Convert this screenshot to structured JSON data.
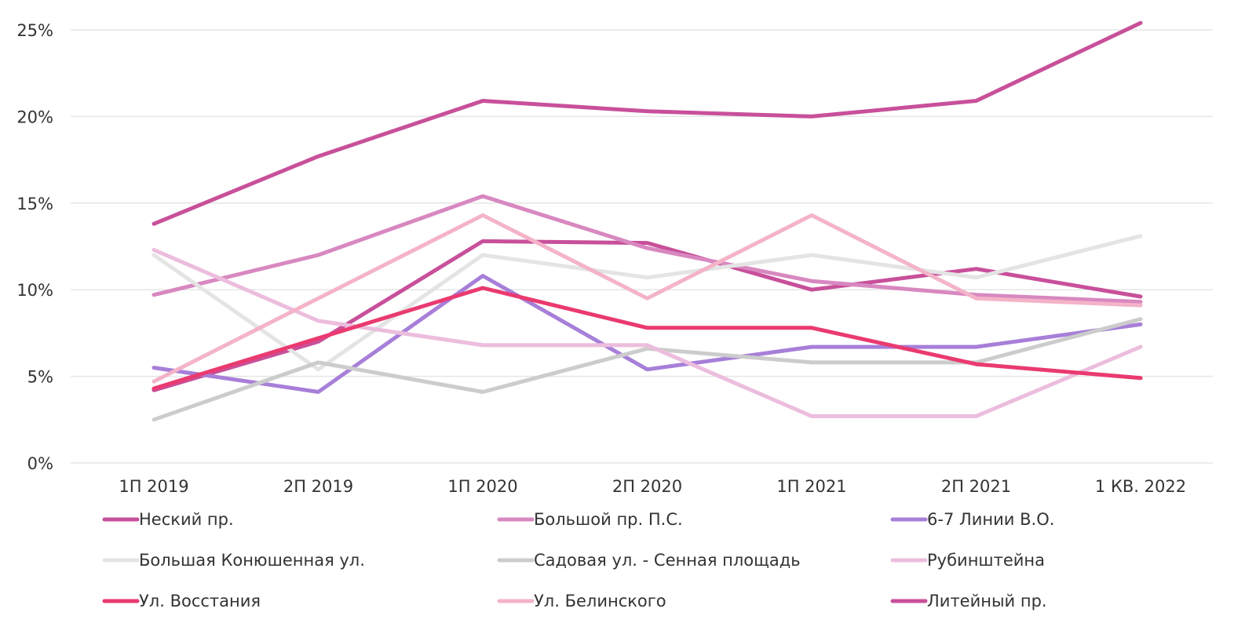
{
  "chart_data": {
    "type": "line",
    "title": "",
    "xlabel": "",
    "ylabel": "",
    "categories": [
      "1П 2019",
      "2П 2019",
      "1П 2020",
      "2П 2020",
      "1П 2021",
      "2П 2021",
      "1 КВ. 2022"
    ],
    "ylim": [
      0,
      25
    ],
    "yticks": [
      0,
      5,
      10,
      15,
      20,
      25
    ],
    "ytick_labels": [
      "0%",
      "5%",
      "10%",
      "15%",
      "20%",
      "25%"
    ],
    "grid": "horizontal",
    "legend_position": "bottom",
    "series": [
      {
        "name": "Неский пр.",
        "color": "#c8509a",
        "values": [
          4.2,
          7.0,
          12.8,
          12.7,
          10.0,
          11.2,
          9.6
        ]
      },
      {
        "name": "Большой пр. П.С.",
        "color": "#d888c0",
        "values": [
          9.7,
          12.0,
          15.4,
          12.4,
          10.5,
          9.7,
          9.3
        ]
      },
      {
        "name": "6-7 Линии В.О.",
        "color": "#a77fd8",
        "values": [
          5.5,
          4.1,
          10.8,
          5.4,
          6.7,
          6.7,
          8.0
        ]
      },
      {
        "name": "Большая Конюшенная ул.",
        "color": "#e4e4e4",
        "values": [
          12.0,
          5.4,
          12.0,
          10.7,
          12.0,
          10.7,
          13.1
        ]
      },
      {
        "name": "Садовая ул. - Сенная площадь",
        "color": "#cccccc",
        "values": [
          2.5,
          5.8,
          4.1,
          6.6,
          5.8,
          5.8,
          8.3
        ]
      },
      {
        "name": "Рубинштейна",
        "color": "#ecbddd",
        "values": [
          12.3,
          8.2,
          6.8,
          6.8,
          2.7,
          2.7,
          6.7
        ]
      },
      {
        "name": "Ул. Восстания",
        "color": "#ea3a70",
        "values": [
          4.3,
          7.2,
          10.1,
          7.8,
          7.8,
          5.7,
          4.9
        ]
      },
      {
        "name": "Ул. Белинского",
        "color": "#f4b3c8",
        "values": [
          4.7,
          9.5,
          14.3,
          9.5,
          14.3,
          9.5,
          9.1
        ]
      },
      {
        "name": "Литейный пр.",
        "color": "#c8509a",
        "values": [
          13.8,
          17.7,
          20.9,
          20.3,
          20.0,
          20.9,
          25.4
        ]
      }
    ]
  }
}
